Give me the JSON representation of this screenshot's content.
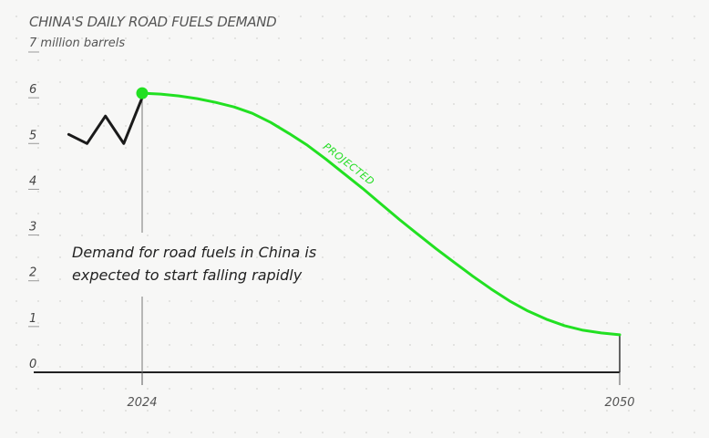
{
  "chart_data": {
    "type": "line",
    "title": "CHINA'S DAILY ROAD FUELS DEMAND",
    "subtitle": "7 million barrels",
    "ylim": [
      0,
      7
    ],
    "yticks": [
      "0",
      "1",
      "2",
      "3",
      "4",
      "5",
      "6"
    ],
    "xlim": [
      2019,
      2052
    ],
    "xticks": [
      {
        "value": 2024,
        "label": "2024"
      },
      {
        "value": 2050,
        "label": "2050"
      }
    ],
    "grid": false,
    "series": [
      {
        "name": "",
        "color": "#1a1a1a",
        "x": [
          2020,
          2021,
          2022,
          2023,
          2024
        ],
        "y": [
          5.2,
          5.0,
          5.6,
          5.0,
          6.0
        ]
      },
      {
        "name": "",
        "label": "PROJECTED",
        "color": "#22e022",
        "x": [
          2024,
          2025,
          2026,
          2027,
          2028,
          2029,
          2030,
          2031,
          2032,
          2033,
          2034,
          2035,
          2036,
          2037,
          2038,
          2039,
          2040,
          2041,
          2042,
          2043,
          2044,
          2045,
          2046,
          2047,
          2048,
          2049,
          2050
        ],
        "y": [
          6.1,
          6.08,
          6.04,
          5.98,
          5.9,
          5.8,
          5.66,
          5.46,
          5.22,
          4.96,
          4.66,
          4.34,
          4.02,
          3.68,
          3.34,
          3.02,
          2.7,
          2.4,
          2.1,
          1.82,
          1.56,
          1.34,
          1.16,
          1.02,
          0.92,
          0.86,
          0.82
        ]
      }
    ],
    "highlight_point": {
      "x": 2024,
      "y": 6.1
    },
    "annotation": [
      "Demand for road fuels in China is",
      "expected to start falling rapidly"
    ]
  }
}
